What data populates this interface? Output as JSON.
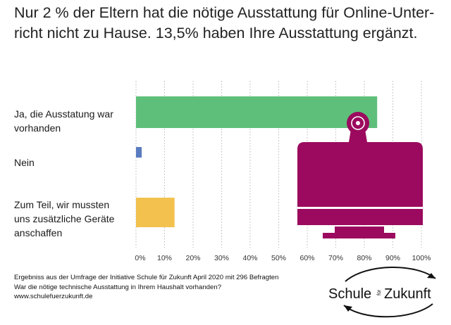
{
  "title_line1": "Nur 2 % der Eltern hat die nötige Ausstattung für Online-Unter-",
  "title_line2": "richt nicht zu Hause. 13,5% haben Ihre Ausstattung ergänzt.",
  "chart_data": {
    "type": "bar",
    "orientation": "horizontal",
    "categories": [
      "Ja, die Ausstatung war vorhanden",
      "Nein",
      "Zum Teil, wir mussten uns zusätzliche Geräte anschaffen"
    ],
    "values": [
      84.5,
      2,
      13.5
    ],
    "colors": [
      "#5ebf7a",
      "#5b7cc0",
      "#f2c14e"
    ],
    "xlim": [
      0,
      100
    ],
    "xticks": [
      "0%",
      "10%",
      "20%",
      "30%",
      "40%",
      "50%",
      "60%",
      "70%",
      "80%",
      "90%",
      "100%"
    ],
    "grid": "vertical dotted"
  },
  "category_lines": [
    [
      "Ja, die Ausstatung war",
      "vorhanden"
    ],
    [
      "Nein"
    ],
    [
      "Zum Teil, wir mussten",
      "uns zusätzliche Geräte",
      "anschaffen"
    ]
  ],
  "footer": {
    "line1": "Ergebniss aus der Umfrage der Initiative Schule für Zukunft  April 2020 mit 296 Befragten",
    "line2": "War die nötige technische Ausstattung in Ihrem Haushalt vorhanden?",
    "line3": "www.schulefuerzukunft.de"
  },
  "logo": {
    "left": "Schule",
    "middle": "für",
    "right": "Zukunft"
  },
  "icon": "computer-monitor-webcam-icon",
  "icon_color": "#9b0a5e"
}
